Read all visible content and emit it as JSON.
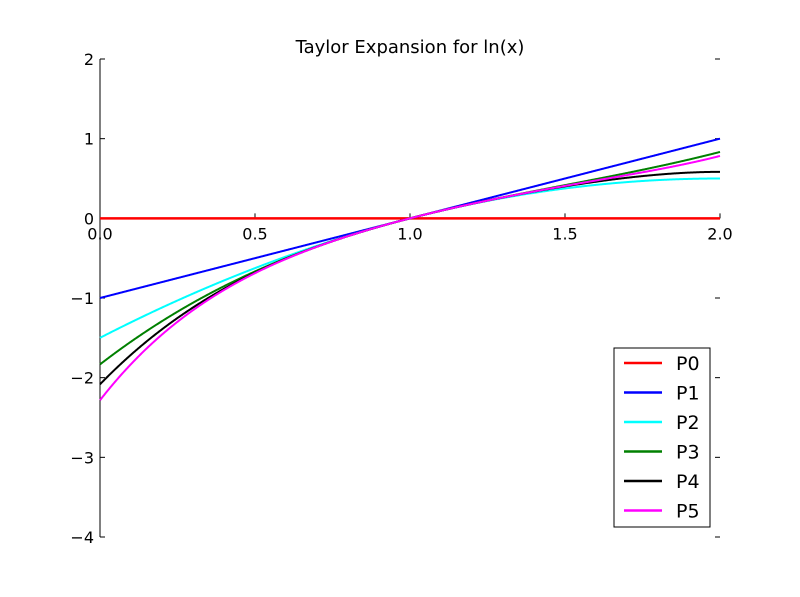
{
  "chart_data": {
    "type": "line",
    "title": "Taylor Expansion for ln(x)",
    "xlabel": "",
    "ylabel": "",
    "xlim": [
      0.0,
      2.0
    ],
    "ylim": [
      -4,
      2
    ],
    "x_ticks": [
      "0.0",
      "0.5",
      "1.0",
      "1.5",
      "2.0"
    ],
    "y_ticks": [
      "2",
      "1",
      "0",
      "−1",
      "−2",
      "−3",
      "−4"
    ],
    "legend_position": "lower-right",
    "grid": false,
    "series": [
      {
        "name": "P0",
        "color": "#ff0000",
        "order": 0
      },
      {
        "name": "P1",
        "color": "#0000ff",
        "order": 1
      },
      {
        "name": "P2",
        "color": "#00ffff",
        "order": 2
      },
      {
        "name": "P3",
        "color": "#008000",
        "order": 3
      },
      {
        "name": "P4",
        "color": "#000000",
        "order": 4
      },
      {
        "name": "P5",
        "color": "#ff00ff",
        "order": 5
      }
    ]
  }
}
